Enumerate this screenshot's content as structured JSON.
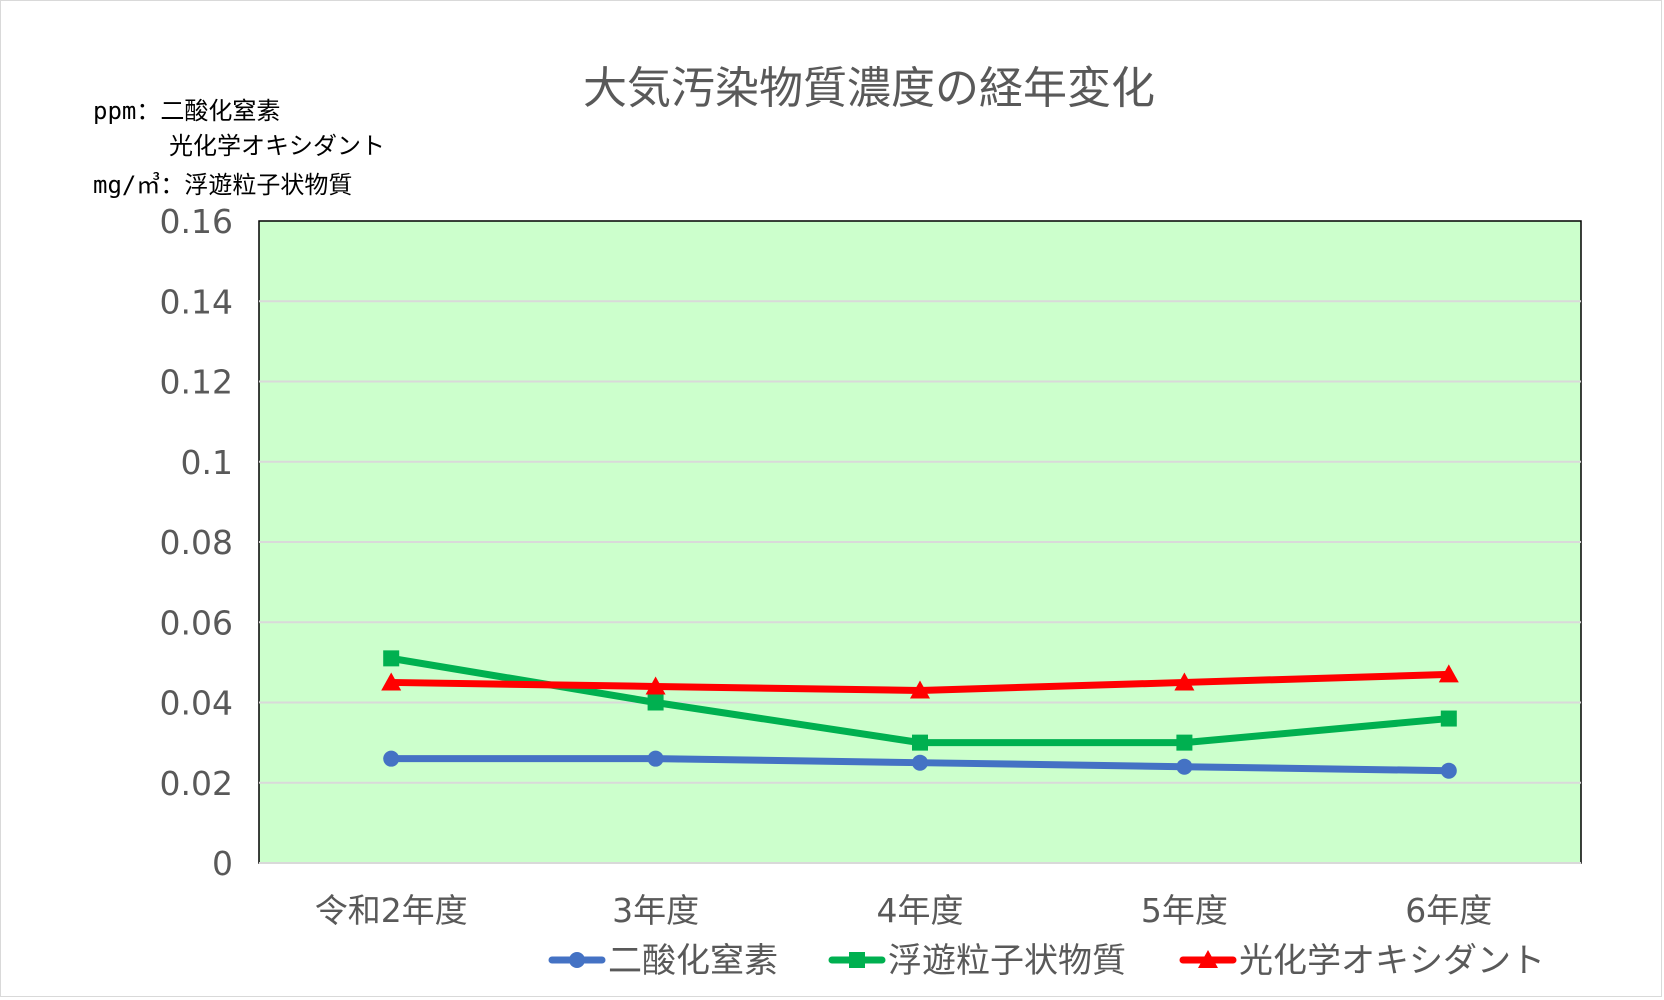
{
  "chart_data": {
    "type": "line",
    "title": "大気汚染物質濃度の経年変化",
    "unit_note": [
      "ppm：二酸化窒素",
      "光化学オキシダント",
      "mg/㎥：浮遊粒子状物質"
    ],
    "categories": [
      "令和2年度",
      "3年度",
      "4年度",
      "5年度",
      "6年度"
    ],
    "yticks": [
      "0",
      "0.02",
      "0.04",
      "0.06",
      "0.08",
      "0.1",
      "0.12",
      "0.14",
      "0.16"
    ],
    "ylim": [
      0,
      0.16
    ],
    "grid": true,
    "plot_background": "#ccffcc",
    "legend_position": "bottom",
    "series": [
      {
        "name": "二酸化窒素",
        "color": "#4472c4",
        "marker": "circle",
        "values": [
          0.026,
          0.026,
          0.025,
          0.024,
          0.023
        ]
      },
      {
        "name": "浮遊粒子状物質",
        "color": "#00b050",
        "marker": "square",
        "values": [
          0.051,
          0.04,
          0.03,
          0.03,
          0.036
        ]
      },
      {
        "name": "光化学オキシダント",
        "color": "#ff0000",
        "marker": "triangle",
        "values": [
          0.045,
          0.044,
          0.043,
          0.045,
          0.047
        ]
      }
    ]
  }
}
